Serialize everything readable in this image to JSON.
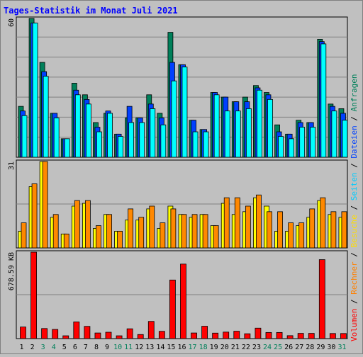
{
  "title": "Tages-Statistik im Monat Juli 2021",
  "chart_data": [
    {
      "type": "bar",
      "panel": "top",
      "ymax_label": "60",
      "ylim": [
        0,
        60
      ],
      "categories": [
        "1",
        "2",
        "3",
        "4",
        "5",
        "6",
        "7",
        "8",
        "9",
        "10",
        "11",
        "12",
        "13",
        "14",
        "15",
        "16",
        "17",
        "18",
        "19",
        "20",
        "21",
        "22",
        "23",
        "24",
        "25",
        "26",
        "27",
        "28",
        "29",
        "30",
        "31"
      ],
      "series": [
        {
          "name": "Anfragen",
          "values": [
            22,
            60,
            41,
            19,
            8,
            32,
            27,
            15,
            19,
            10,
            17,
            17,
            27,
            19,
            54,
            40,
            16,
            12,
            28,
            26,
            24,
            26,
            31,
            28,
            14,
            10,
            16,
            15,
            51,
            23,
            21
          ]
        },
        {
          "name": "Dateien",
          "values": [
            20,
            58,
            37,
            19,
            8,
            29,
            25,
            13,
            20,
            10,
            22,
            17,
            23,
            17,
            41,
            40,
            16,
            12,
            28,
            26,
            24,
            24,
            30,
            27,
            11,
            10,
            15,
            15,
            50,
            22,
            19
          ]
        },
        {
          "name": "Seiten",
          "values": [
            18,
            58,
            35,
            17,
            8,
            27,
            23,
            11,
            19,
            9,
            15,
            15,
            21,
            14,
            33,
            39,
            11,
            11,
            27,
            20,
            20,
            21,
            29,
            25,
            9,
            8,
            13,
            13,
            49,
            20,
            16
          ]
        }
      ]
    },
    {
      "type": "bar",
      "panel": "middle",
      "ymax_label": "31",
      "ylim": [
        0,
        31
      ],
      "categories": [
        "1",
        "2",
        "3",
        "4",
        "5",
        "6",
        "7",
        "8",
        "9",
        "10",
        "11",
        "12",
        "13",
        "14",
        "15",
        "16",
        "17",
        "18",
        "19",
        "20",
        "21",
        "22",
        "23",
        "24",
        "25",
        "26",
        "27",
        "28",
        "29",
        "30",
        "31"
      ],
      "series": [
        {
          "name": "Besuche",
          "values": [
            6,
            22,
            31,
            11,
            5,
            15,
            16,
            7,
            12,
            6,
            10,
            10,
            14,
            7,
            15,
            12,
            11,
            12,
            8,
            16,
            12,
            13,
            18,
            15,
            6,
            6,
            8,
            11,
            17,
            12,
            11
          ]
        },
        {
          "name": "Rechner",
          "values": [
            9,
            23,
            31,
            12,
            5,
            17,
            17,
            8,
            12,
            6,
            14,
            11,
            15,
            9,
            14,
            12,
            12,
            12,
            8,
            18,
            18,
            15,
            19,
            13,
            13,
            9,
            9,
            14,
            18,
            13,
            13
          ]
        }
      ]
    },
    {
      "type": "bar",
      "panel": "bottom",
      "ymax_label": "678.59 KB",
      "ylim": [
        0,
        678.59
      ],
      "categories": [
        "1",
        "2",
        "3",
        "4",
        "5",
        "6",
        "7",
        "8",
        "9",
        "10",
        "11",
        "12",
        "13",
        "14",
        "15",
        "16",
        "17",
        "18",
        "19",
        "20",
        "21",
        "22",
        "23",
        "24",
        "25",
        "26",
        "27",
        "28",
        "29",
        "30",
        "31"
      ],
      "series": [
        {
          "name": "Volumen",
          "values": [
            91,
            678.59,
            79,
            72,
            22,
            131,
            96,
            44,
            50,
            22,
            77,
            32,
            135,
            57,
            460,
            585,
            44,
            97,
            43,
            51,
            58,
            38,
            82,
            48,
            48,
            23,
            41,
            41,
            620,
            40,
            40
          ]
        }
      ]
    }
  ],
  "right_legend": [
    {
      "text": "Volumen",
      "color": "#ff0000"
    },
    {
      "text": " / ",
      "color": "#000000"
    },
    {
      "text": "Rechner",
      "color": "#ff8000"
    },
    {
      "text": " / ",
      "color": "#000000"
    },
    {
      "text": "Besuche",
      "color": "#ffdd00"
    },
    {
      "text": " / ",
      "color": "#000000"
    },
    {
      "text": "Seiten",
      "color": "#00ccff"
    },
    {
      "text": " / ",
      "color": "#000000"
    },
    {
      "text": "Dateien",
      "color": "#0040ff"
    },
    {
      "text": " / ",
      "color": "#000000"
    },
    {
      "text": "Anfragen",
      "color": "#00805a"
    }
  ],
  "weekend_days": [
    "3",
    "4",
    "10",
    "11",
    "17",
    "18",
    "24",
    "25",
    "31"
  ],
  "colors": {
    "background": "#c0c0c0",
    "title": "#0000ff",
    "weekday_label": "#000000",
    "weekend_label": "#00805a",
    "Anfragen": "#00805a",
    "Dateien": "#0040ff",
    "Seiten": "#00ffff",
    "Besuche": "#ffff00",
    "Rechner": "#ff8800",
    "Volumen": "#ff0000"
  }
}
